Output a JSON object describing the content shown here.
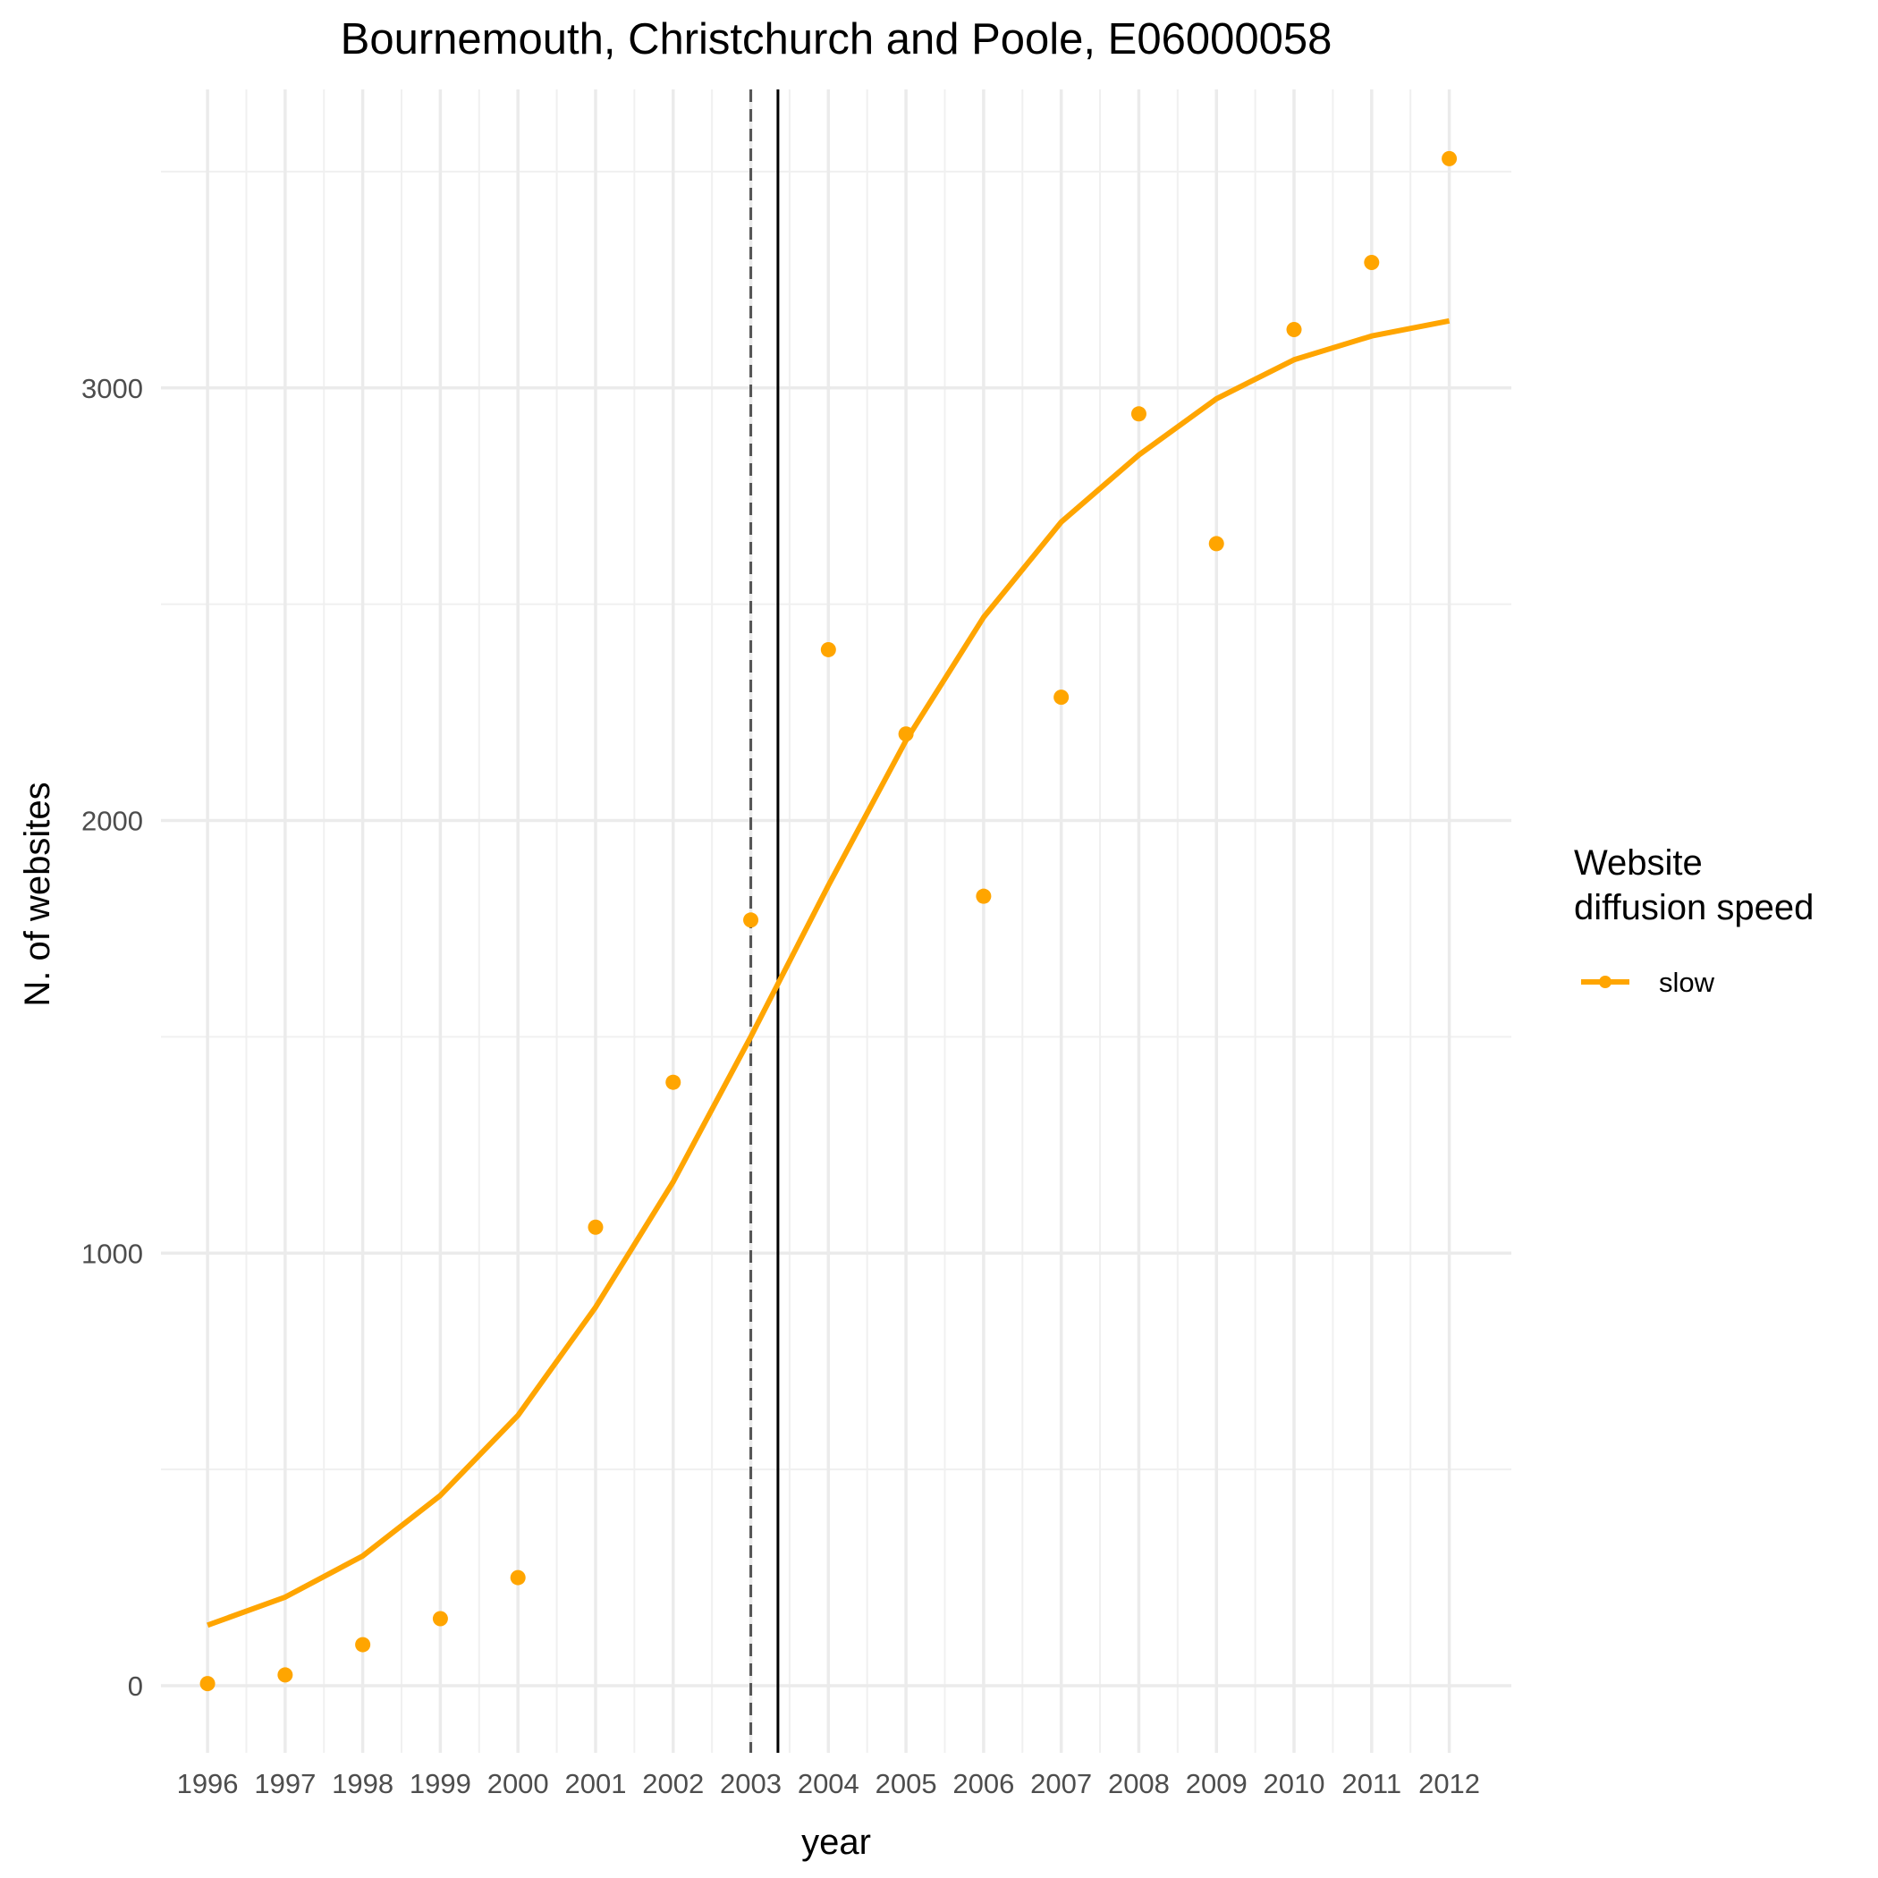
{
  "chart_data": {
    "type": "line",
    "title": "Bournemouth, Christchurch and Poole, E06000058",
    "xlabel": "year",
    "ylabel": "N. of websites",
    "x": [
      1996,
      1997,
      1998,
      1999,
      2000,
      2001,
      2002,
      2003,
      2004,
      2005,
      2006,
      2007,
      2008,
      2009,
      2010,
      2011,
      2012
    ],
    "x_tick_labels": [
      "1996",
      "1997",
      "1998",
      "1999",
      "2000",
      "2001",
      "2002",
      "2003",
      "2004",
      "2005",
      "2006",
      "2007",
      "2008",
      "2009",
      "2010",
      "2011",
      "2012"
    ],
    "y_ticks": [
      0,
      1000,
      2000,
      3000
    ],
    "y_tick_labels": [
      "0",
      "1000",
      "2000",
      "3000"
    ],
    "xlim": [
      1995.4,
      2012.8
    ],
    "ylim": [
      -155,
      3690
    ],
    "grid": true,
    "series": [
      {
        "name": "slow",
        "kind": "points",
        "color": "#FFA500",
        "values": [
          5,
          25,
          95,
          155,
          250,
          1060,
          1395,
          1770,
          2395,
          2200,
          1825,
          2285,
          2940,
          2640,
          3135,
          3290,
          3530
        ]
      },
      {
        "name": "slow",
        "kind": "smooth-line",
        "color": "#FFA500",
        "values": [
          140,
          205,
          300,
          440,
          625,
          875,
          1165,
          1500,
          1850,
          2185,
          2470,
          2690,
          2845,
          2975,
          3065,
          3120,
          3155
        ]
      }
    ],
    "vlines": [
      {
        "x": 2003.0,
        "style": "dashed",
        "color": "#555555"
      },
      {
        "x": 2003.35,
        "style": "solid",
        "color": "#000000"
      }
    ],
    "legend": {
      "title_lines": [
        "Website",
        "diffusion speed"
      ],
      "entries": [
        {
          "label": "slow",
          "color": "#FFA500"
        }
      ],
      "placement": "right"
    }
  }
}
